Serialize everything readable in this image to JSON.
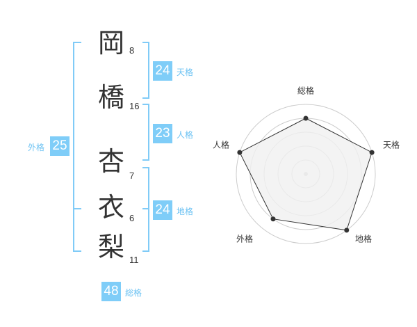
{
  "name": [
    {
      "char": "岡",
      "strokes": "8"
    },
    {
      "char": "橋",
      "strokes": "16"
    },
    {
      "char": "杏",
      "strokes": "7"
    },
    {
      "char": "衣",
      "strokes": "6"
    },
    {
      "char": "梨",
      "strokes": "11"
    }
  ],
  "kaku": {
    "tenkaku": {
      "label": "天格",
      "value": "24"
    },
    "jinkaku": {
      "label": "人格",
      "value": "23"
    },
    "chikaku": {
      "label": "地格",
      "value": "24"
    },
    "gaikaku": {
      "label": "外格",
      "value": "25"
    },
    "soukaku": {
      "label": "総格",
      "value": "48"
    }
  },
  "chart_data": {
    "type": "radar",
    "axes": [
      "総格",
      "天格",
      "地格",
      "外格",
      "人格"
    ],
    "values": [
      4,
      5,
      5,
      4,
      5
    ],
    "max": 5,
    "colors": {
      "fill": "#f0f0f0",
      "line": "#333333",
      "grid": "#cccccc",
      "accent": "#7fcdf8"
    }
  }
}
